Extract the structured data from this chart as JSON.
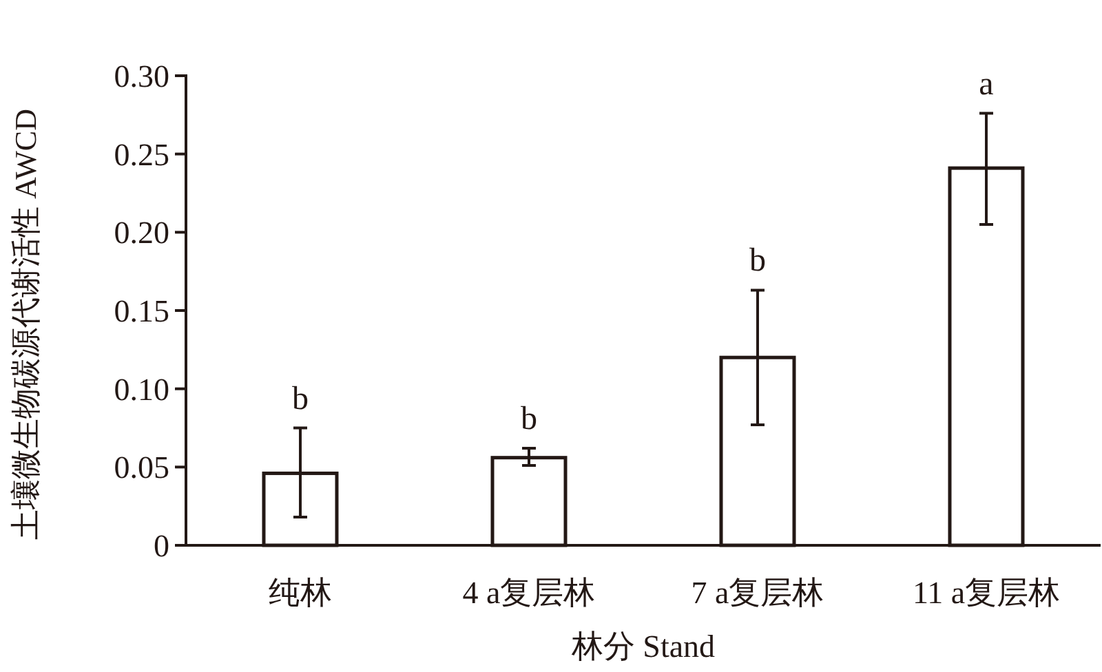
{
  "chart_data": {
    "type": "bar",
    "xlabel": "林分 Stand",
    "ylabel": "土壤微生物碳源代谢活性 AWCD",
    "categories": [
      "纯林",
      "4 a复层林",
      "7 a复层林",
      "11 a复层林"
    ],
    "series": [
      {
        "color": "#ffffff",
        "values": [
          0.046,
          0.056,
          0.12,
          0.241
        ],
        "errors": [
          [
            0.018,
            0.075
          ],
          [
            0.051,
            0.062
          ],
          [
            0.077,
            0.163
          ],
          [
            0.205,
            0.276
          ]
        ]
      }
    ],
    "ylim": [
      0,
      0.3
    ],
    "yticks": [
      {
        "value": 0,
        "label": "0"
      },
      {
        "value": 0.05,
        "label": "0.05"
      },
      {
        "value": 0.1,
        "label": "0.10"
      },
      {
        "value": 0.15,
        "label": "0.15"
      },
      {
        "value": 0.2,
        "label": "0.20"
      },
      {
        "value": 0.25,
        "label": "0.25"
      },
      {
        "value": 0.3,
        "label": "0.30"
      }
    ],
    "annotations": [
      {
        "text": "b",
        "x": "纯林",
        "y": 0.075
      },
      {
        "text": "b",
        "x": "4 a复层林",
        "y": 0.062
      },
      {
        "text": "b",
        "x": "7 a复层林",
        "y": 0.163
      },
      {
        "text": "a",
        "x": "11 a复层林",
        "y": 0.276
      }
    ],
    "grid": false
  }
}
